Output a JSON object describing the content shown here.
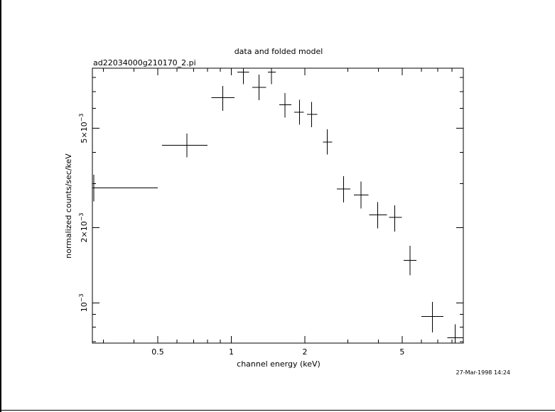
{
  "chart_data": {
    "type": "scatter",
    "title": "data and folded model",
    "subtitle": "ad22034000g210170_2.pi",
    "xlabel": "channel energy (keV)",
    "ylabel": "normalized counts/sec/keV",
    "timestamp": "27-Mar-1998 14:24",
    "x_scale": "log",
    "y_scale": "log",
    "xlim": [
      0.27,
      8.9
    ],
    "ylim": [
      0.00069,
      0.0087
    ],
    "x_tick_labels": [
      {
        "value": 0.5,
        "label": "0.5"
      },
      {
        "value": 1,
        "label": "1"
      },
      {
        "value": 2,
        "label": "2"
      },
      {
        "value": 5,
        "label": "5"
      }
    ],
    "y_tick_labels": [
      {
        "value": 0.001,
        "base": "10",
        "exp": "−3"
      },
      {
        "value": 0.002,
        "base": "2×10",
        "exp": "−3"
      },
      {
        "value": 0.005,
        "base": "5×10",
        "exp": "−3"
      }
    ],
    "points": [
      {
        "x": 0.274,
        "xlo": 0.27,
        "xhi": 0.5,
        "y": 0.00289,
        "ylo": 0.00255,
        "yhi": 0.00326
      },
      {
        "x": 0.658,
        "xlo": 0.52,
        "xhi": 0.8,
        "y": 0.00428,
        "ylo": 0.00382,
        "yhi": 0.00476
      },
      {
        "x": 0.924,
        "xlo": 0.83,
        "xhi": 1.03,
        "y": 0.00662,
        "ylo": 0.00588,
        "yhi": 0.00738
      },
      {
        "x": 1.12,
        "xlo": 1.06,
        "xhi": 1.18,
        "y": 0.0084,
        "ylo": 0.0075,
        "yhi": 0.0087
      },
      {
        "x": 1.3,
        "xlo": 1.22,
        "xhi": 1.39,
        "y": 0.0073,
        "ylo": 0.00648,
        "yhi": 0.0082
      },
      {
        "x": 1.46,
        "xlo": 1.41,
        "xhi": 1.52,
        "y": 0.0084,
        "ylo": 0.0075,
        "yhi": 0.0087
      },
      {
        "x": 1.66,
        "xlo": 1.57,
        "xhi": 1.76,
        "y": 0.0062,
        "ylo": 0.00551,
        "yhi": 0.00692
      },
      {
        "x": 1.9,
        "xlo": 1.81,
        "xhi": 1.98,
        "y": 0.0058,
        "ylo": 0.00517,
        "yhi": 0.00651
      },
      {
        "x": 2.13,
        "xlo": 2.04,
        "xhi": 2.25,
        "y": 0.00568,
        "ylo": 0.00505,
        "yhi": 0.00638
      },
      {
        "x": 2.47,
        "xlo": 2.37,
        "xhi": 2.59,
        "y": 0.0044,
        "ylo": 0.00392,
        "yhi": 0.00495
      },
      {
        "x": 2.88,
        "xlo": 2.7,
        "xhi": 3.07,
        "y": 0.00286,
        "ylo": 0.00252,
        "yhi": 0.00321
      },
      {
        "x": 3.39,
        "xlo": 3.17,
        "xhi": 3.64,
        "y": 0.0027,
        "ylo": 0.00239,
        "yhi": 0.00306
      },
      {
        "x": 3.97,
        "xlo": 3.67,
        "xhi": 4.33,
        "y": 0.00225,
        "ylo": 0.00199,
        "yhi": 0.00253
      },
      {
        "x": 4.66,
        "xlo": 4.42,
        "xhi": 4.98,
        "y": 0.0022,
        "ylo": 0.00193,
        "yhi": 0.00246
      },
      {
        "x": 5.39,
        "xlo": 5.07,
        "xhi": 5.72,
        "y": 0.00148,
        "ylo": 0.00129,
        "yhi": 0.00169
      },
      {
        "x": 6.66,
        "xlo": 5.99,
        "xhi": 7.39,
        "y": 0.000882,
        "ylo": 0.000761,
        "yhi": 0.00101
      },
      {
        "x": 8.25,
        "xlo": 7.65,
        "xhi": 8.9,
        "y": 0.000724,
        "ylo": 0.00069,
        "yhi": 0.00082
      }
    ]
  }
}
